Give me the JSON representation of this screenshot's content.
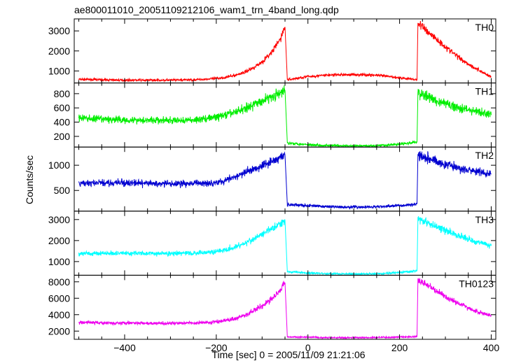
{
  "chart_data": {
    "type": "line",
    "title": "ae800011010_20051109212106_wam1_trn_4band_long.qdp",
    "xlabel": "Time [sec] 0 = 2005/11/09 21:21:06",
    "ylabel": "Counts/sec",
    "xlim": [
      -510,
      410
    ],
    "x_ticks": [
      -400,
      -200,
      0,
      200,
      400
    ],
    "x_tick_labels": [
      "−400",
      "−200",
      "0",
      "200",
      "400"
    ],
    "gaps": [
      [
        -48,
        -43
      ],
      [
        238,
        240
      ]
    ],
    "panels": [
      {
        "label": "TH0",
        "color": "#ff0000",
        "ylim": [
          400,
          3600
        ],
        "y_ticks": [
          1000,
          2000,
          3000
        ],
        "y_tick_labels": [
          "1000",
          "2000",
          "3000"
        ],
        "x": [
          -500,
          -450,
          -400,
          -350,
          -300,
          -250,
          -200,
          -180,
          -160,
          -140,
          -120,
          -100,
          -80,
          -60,
          -50,
          -45,
          0,
          50,
          100,
          150,
          200,
          238,
          240,
          260,
          280,
          300,
          320,
          340,
          360,
          380,
          400
        ],
        "y": [
          580,
          560,
          540,
          540,
          540,
          560,
          620,
          680,
          780,
          920,
          1150,
          1450,
          1900,
          2600,
          3200,
          560,
          720,
          800,
          820,
          790,
          660,
          560,
          3400,
          3000,
          2600,
          2200,
          1850,
          1500,
          1200,
          950,
          700
        ]
      },
      {
        "label": "TH1",
        "color": "#00ee00",
        "ylim": [
          50,
          950
        ],
        "y_ticks": [
          200,
          400,
          600,
          800
        ],
        "y_tick_labels": [
          "200",
          "400",
          "600",
          "800"
        ],
        "x": [
          -500,
          -450,
          -400,
          -350,
          -300,
          -250,
          -200,
          -180,
          -160,
          -140,
          -120,
          -100,
          -80,
          -60,
          -50,
          -45,
          -20,
          0,
          50,
          100,
          150,
          200,
          238,
          240,
          260,
          280,
          300,
          320,
          340,
          360,
          380,
          400
        ],
        "y": [
          460,
          440,
          430,
          430,
          420,
          430,
          470,
          500,
          540,
          590,
          640,
          700,
          760,
          800,
          850,
          110,
          95,
          85,
          70,
          65,
          70,
          90,
          120,
          820,
          760,
          700,
          660,
          620,
          590,
          560,
          530,
          500
        ]
      },
      {
        "label": "TH2",
        "color": "#0000d0",
        "ylim": [
          90,
          1360
        ],
        "y_ticks": [
          500,
          1000
        ],
        "y_tick_labels": [
          "500",
          "1000"
        ],
        "x": [
          -500,
          -450,
          -400,
          -350,
          -300,
          -250,
          -200,
          -180,
          -160,
          -140,
          -120,
          -100,
          -80,
          -60,
          -50,
          -45,
          0,
          50,
          100,
          150,
          200,
          238,
          240,
          260,
          280,
          300,
          320,
          340,
          360,
          380,
          400
        ],
        "y": [
          640,
          650,
          650,
          640,
          630,
          640,
          660,
          700,
          760,
          840,
          920,
          1000,
          1080,
          1150,
          1200,
          220,
          200,
          175,
          170,
          175,
          200,
          230,
          1220,
          1150,
          1080,
          1020,
          970,
          920,
          880,
          850,
          820
        ]
      },
      {
        "label": "TH3",
        "color": "#00ffff",
        "ylim": [
          350,
          3400
        ],
        "y_ticks": [
          1000,
          2000,
          3000
        ],
        "y_tick_labels": [
          "1000",
          "2000",
          "3000"
        ],
        "x": [
          -500,
          -450,
          -400,
          -350,
          -300,
          -250,
          -200,
          -180,
          -160,
          -140,
          -120,
          -100,
          -80,
          -60,
          -50,
          -45,
          0,
          50,
          100,
          150,
          200,
          238,
          240,
          260,
          280,
          300,
          320,
          340,
          360,
          380,
          400
        ],
        "y": [
          1380,
          1400,
          1400,
          1390,
          1380,
          1400,
          1480,
          1560,
          1680,
          1850,
          2050,
          2300,
          2550,
          2800,
          2950,
          520,
          460,
          420,
          410,
          420,
          480,
          560,
          3050,
          2850,
          2650,
          2480,
          2300,
          2150,
          2000,
          1880,
          1750
        ]
      },
      {
        "label": "TH0123",
        "color": "#ee00ee",
        "ylim": [
          1000,
          8800
        ],
        "y_ticks": [
          2000,
          4000,
          6000,
          8000
        ],
        "y_tick_labels": [
          "2000",
          "4000",
          "6000",
          "8000"
        ],
        "x": [
          -500,
          -450,
          -400,
          -350,
          -300,
          -250,
          -200,
          -180,
          -160,
          -140,
          -120,
          -100,
          -80,
          -60,
          -50,
          -45,
          0,
          50,
          100,
          150,
          200,
          238,
          240,
          260,
          280,
          300,
          320,
          340,
          360,
          380,
          400
        ],
        "y": [
          3050,
          3000,
          2980,
          2950,
          2940,
          2980,
          3120,
          3300,
          3550,
          3900,
          4400,
          5100,
          5900,
          7000,
          7900,
          1300,
          1250,
          1200,
          1200,
          1220,
          1280,
          1320,
          8200,
          7600,
          6900,
          6200,
          5600,
          5100,
          4600,
          4200,
          3850
        ]
      }
    ]
  }
}
